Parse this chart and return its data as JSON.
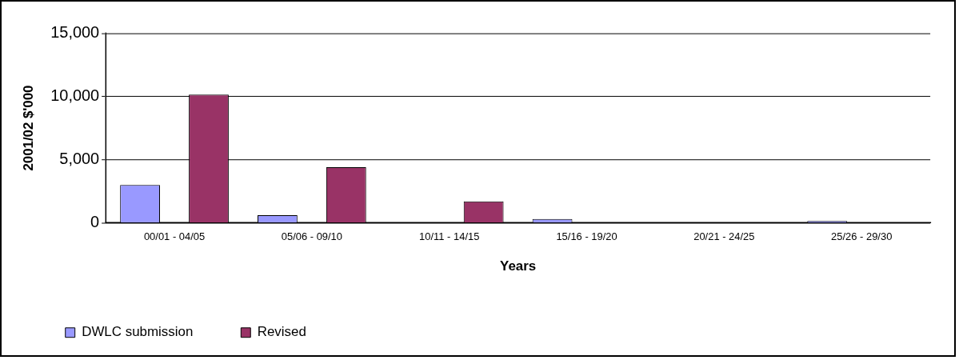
{
  "chart_data": {
    "type": "bar",
    "xlabel": "Years",
    "ylabel": "2001/02 $'000",
    "categories": [
      "00/01 - 04/05",
      "05/06 - 09/10",
      "10/11 - 14/15",
      "15/16 - 19/20",
      "20/21 - 24/25",
      "25/26 - 29/30"
    ],
    "series": [
      {
        "name": "DWLC submission",
        "color": "#9999ff",
        "values": [
          3000,
          600,
          0,
          300,
          0,
          150
        ]
      },
      {
        "name": "Revised",
        "color": "#993366",
        "values": [
          10150,
          4400,
          1700,
          0,
          0,
          0
        ]
      }
    ],
    "ylim": [
      0,
      15000
    ],
    "yticks": [
      {
        "value": 0,
        "label": "0"
      },
      {
        "value": 5000,
        "label": "5,000"
      },
      {
        "value": 10000,
        "label": "10,000"
      },
      {
        "value": 15000,
        "label": "15,000"
      }
    ],
    "grid": "y",
    "legend": "bottom left"
  }
}
